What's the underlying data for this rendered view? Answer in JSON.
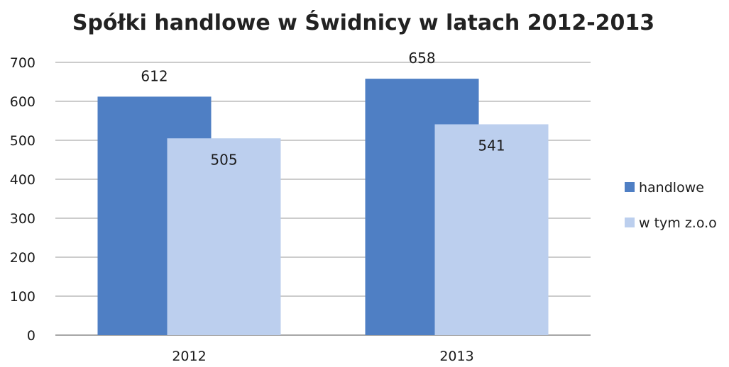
{
  "chart_data": {
    "type": "bar",
    "title": "Spółki handlowe w Świdnicy w latach 2012-2013",
    "categories": [
      "2012",
      "2013"
    ],
    "series": [
      {
        "name": "handlowe",
        "values": [
          612,
          658
        ],
        "color": "#4f7fc4"
      },
      {
        "name": "w tym z.o.o",
        "values": [
          505,
          541
        ],
        "color": "#bccfee"
      }
    ],
    "ylim": [
      0,
      700
    ],
    "yticks": [
      0,
      100,
      200,
      300,
      400,
      500,
      600,
      700
    ],
    "grid": true,
    "legend": "right"
  }
}
